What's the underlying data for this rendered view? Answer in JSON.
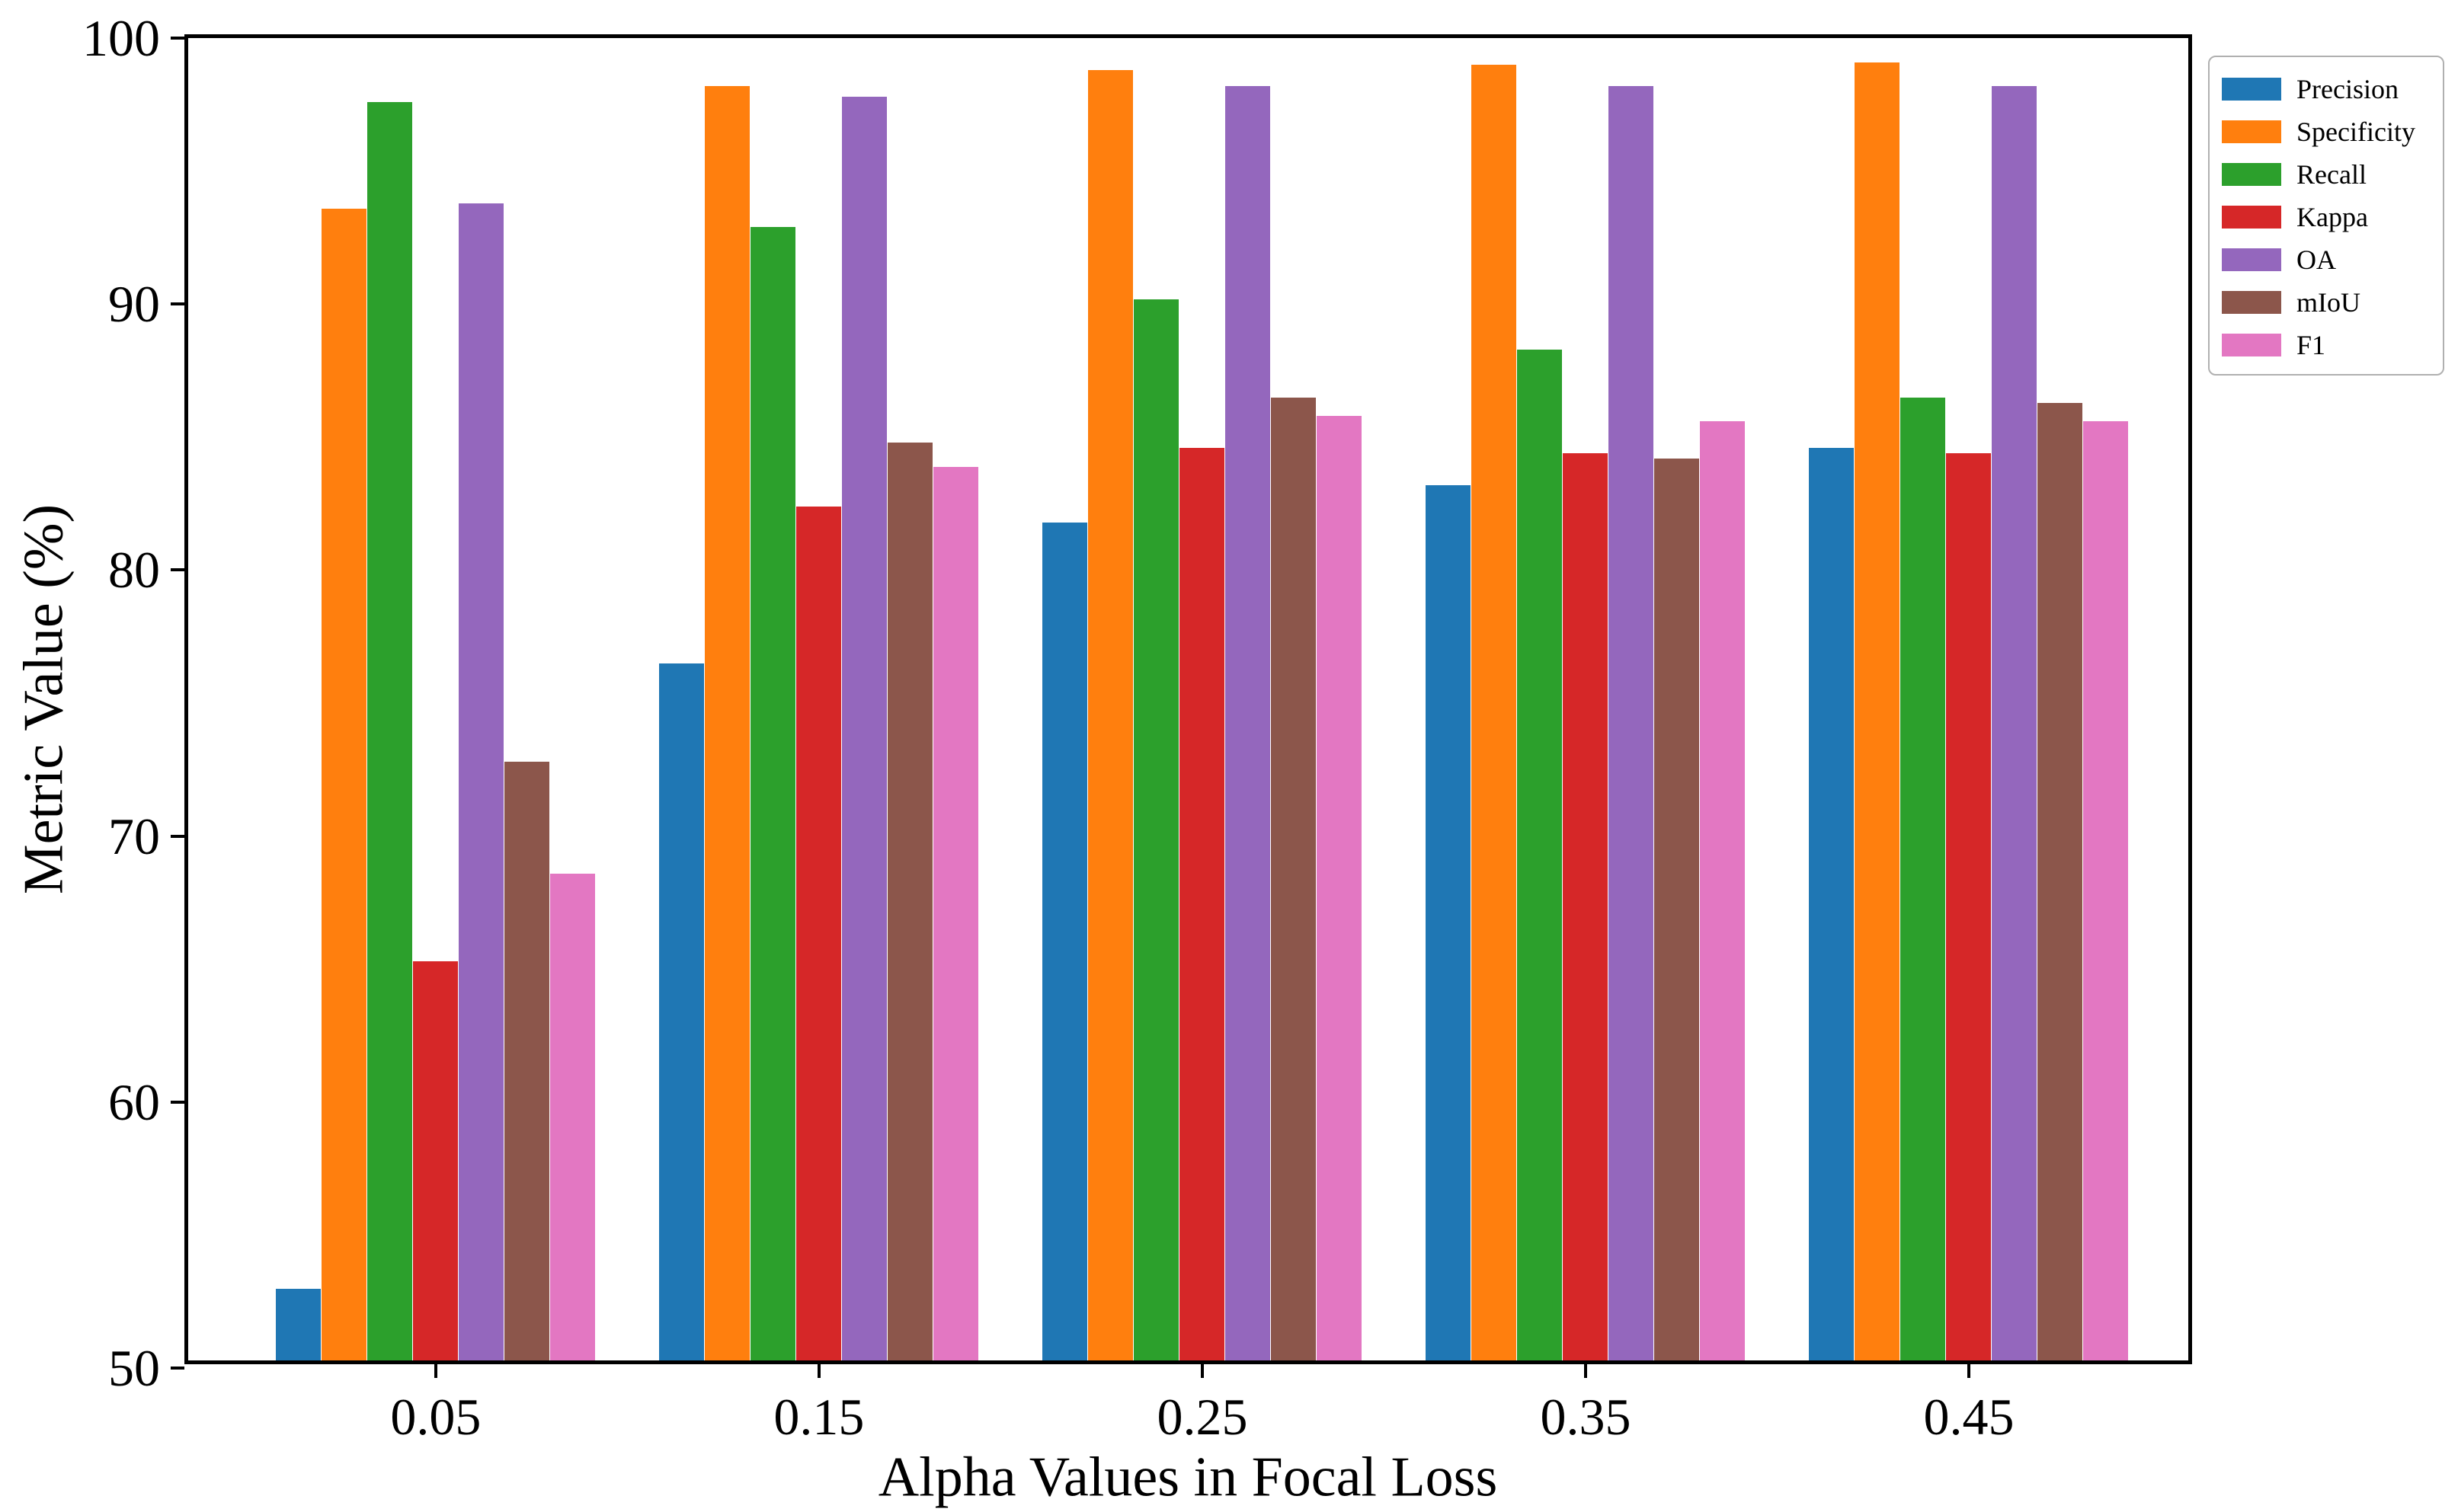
{
  "chart_data": {
    "type": "bar",
    "title": "",
    "xlabel": "Alpha Values in Focal Loss",
    "ylabel": "Metric Value (%)",
    "categories": [
      "0.05",
      "0.15",
      "0.25",
      "0.35",
      "0.45"
    ],
    "series": [
      {
        "name": "Precision",
        "color": "#1f77b4",
        "values": [
          52.7,
          76.2,
          81.5,
          82.9,
          84.3
        ]
      },
      {
        "name": "Specificity",
        "color": "#ff7f0e",
        "values": [
          93.3,
          97.9,
          98.5,
          98.7,
          98.8
        ]
      },
      {
        "name": "Recall",
        "color": "#2ca02c",
        "values": [
          97.3,
          92.6,
          89.9,
          88.0,
          86.2
        ]
      },
      {
        "name": "Kappa",
        "color": "#d62728",
        "values": [
          65.0,
          82.1,
          84.3,
          84.1,
          84.1
        ]
      },
      {
        "name": "OA",
        "color": "#9467bd",
        "values": [
          93.5,
          97.5,
          97.9,
          97.9,
          97.9
        ]
      },
      {
        "name": "mIoU",
        "color": "#8c564b",
        "values": [
          72.5,
          84.5,
          86.2,
          83.9,
          86.0
        ]
      },
      {
        "name": "F1",
        "color": "#e377c2",
        "values": [
          68.3,
          83.6,
          85.5,
          85.3,
          85.3
        ]
      }
    ],
    "ylim": [
      50,
      100
    ],
    "yticks": [
      50,
      60,
      70,
      80,
      90,
      100
    ],
    "grid": false,
    "legend_position": "outside-upper-right",
    "axis_color": "#000000",
    "background_color": "#ffffff"
  }
}
